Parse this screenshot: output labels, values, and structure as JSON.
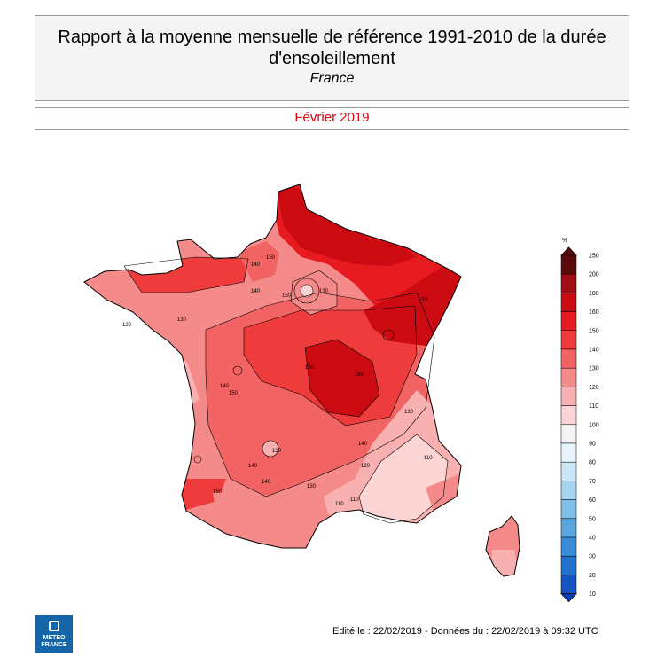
{
  "header": {
    "title_line1": "Rapport à la moyenne mensuelle de référence 1991-2010 de la durée",
    "title_line2": "d'ensoleillement",
    "subtitle": "France",
    "period": "Février 2019"
  },
  "colors": {
    "title_bg": "#f4f4f4",
    "period_text": "#e0000b",
    "logo_bg": "#1565a8"
  },
  "map": {
    "region": "France",
    "contour_labels": [
      "140",
      "150",
      "150",
      "140",
      "130",
      "150",
      "120",
      "130",
      "140",
      "150",
      "160",
      "150",
      "140",
      "130",
      "140",
      "120",
      "130",
      "110",
      "110",
      "110",
      "150",
      "140",
      "130"
    ]
  },
  "scale": {
    "unit": "%",
    "ticks": [
      "250",
      "200",
      "180",
      "160",
      "150",
      "140",
      "130",
      "120",
      "110",
      "100",
      "90",
      "80",
      "70",
      "60",
      "50",
      "40",
      "30",
      "20",
      "10"
    ],
    "colors": [
      "#5a0a0a",
      "#a10d14",
      "#cc0a12",
      "#e61a1f",
      "#ee3c3c",
      "#f26464",
      "#f58a8a",
      "#f8b0b0",
      "#fbd4d4",
      "#f4f4f4",
      "#e8f4fb",
      "#cbe6f6",
      "#a6d4f0",
      "#7fbfe9",
      "#5aa7e0",
      "#3a8cd6",
      "#2070cc",
      "#1455c2",
      "#0a3db8"
    ]
  },
  "footer": {
    "text": "Edité le : 22/02/2019 - Données du : 22/02/2019 à 09:32 UTC",
    "logo_line1": "METEO",
    "logo_line2": "FRANCE"
  }
}
